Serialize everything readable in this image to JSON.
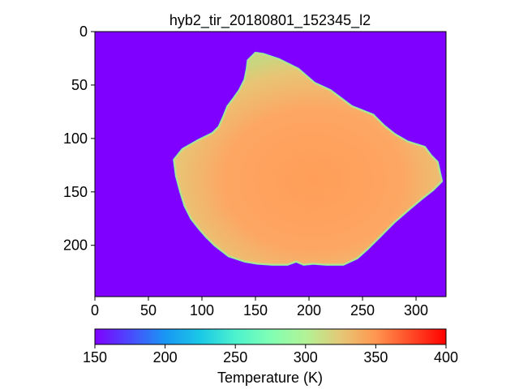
{
  "chart_data": {
    "type": "heatmap",
    "title": "hyb2_tir_20180801_152345_l2",
    "xlabel": "",
    "ylabel": "",
    "xlim": [
      0,
      328
    ],
    "ylim": [
      248,
      0
    ],
    "x_ticks": [
      0,
      50,
      100,
      150,
      200,
      250,
      300
    ],
    "y_ticks": [
      0,
      50,
      100,
      150,
      200
    ],
    "grid": false,
    "background_value": 150,
    "target_outline": [
      [
        150,
        20
      ],
      [
        157,
        21
      ],
      [
        172,
        26
      ],
      [
        190,
        35
      ],
      [
        205,
        48
      ],
      [
        220,
        55
      ],
      [
        240,
        70
      ],
      [
        260,
        78
      ],
      [
        270,
        88
      ],
      [
        280,
        96
      ],
      [
        292,
        103
      ],
      [
        308,
        108
      ],
      [
        314,
        116
      ],
      [
        320,
        122
      ],
      [
        324,
        140
      ],
      [
        316,
        148
      ],
      [
        307,
        155
      ],
      [
        295,
        165
      ],
      [
        280,
        178
      ],
      [
        266,
        192
      ],
      [
        255,
        203
      ],
      [
        245,
        212
      ],
      [
        232,
        218
      ],
      [
        216,
        218
      ],
      [
        204,
        217
      ],
      [
        195,
        218
      ],
      [
        188,
        215
      ],
      [
        180,
        218
      ],
      [
        166,
        218
      ],
      [
        152,
        217
      ],
      [
        140,
        215
      ],
      [
        125,
        210
      ],
      [
        112,
        200
      ],
      [
        104,
        192
      ],
      [
        97,
        184
      ],
      [
        90,
        175
      ],
      [
        84,
        163
      ],
      [
        80,
        150
      ],
      [
        76,
        135
      ],
      [
        74,
        120
      ],
      [
        82,
        110
      ],
      [
        96,
        102
      ],
      [
        110,
        95
      ],
      [
        116,
        89
      ],
      [
        120,
        80
      ],
      [
        124,
        70
      ],
      [
        130,
        62
      ],
      [
        135,
        55
      ],
      [
        140,
        45
      ],
      [
        142,
        35
      ],
      [
        143,
        27
      ]
    ],
    "target_value_range": [
      300,
      355
    ],
    "colorbar": {
      "label": "Temperature (K)",
      "min": 150,
      "max": 400,
      "ticks": [
        150,
        200,
        250,
        300,
        350,
        400
      ],
      "colormap": "rainbow",
      "orientation": "horizontal"
    }
  }
}
